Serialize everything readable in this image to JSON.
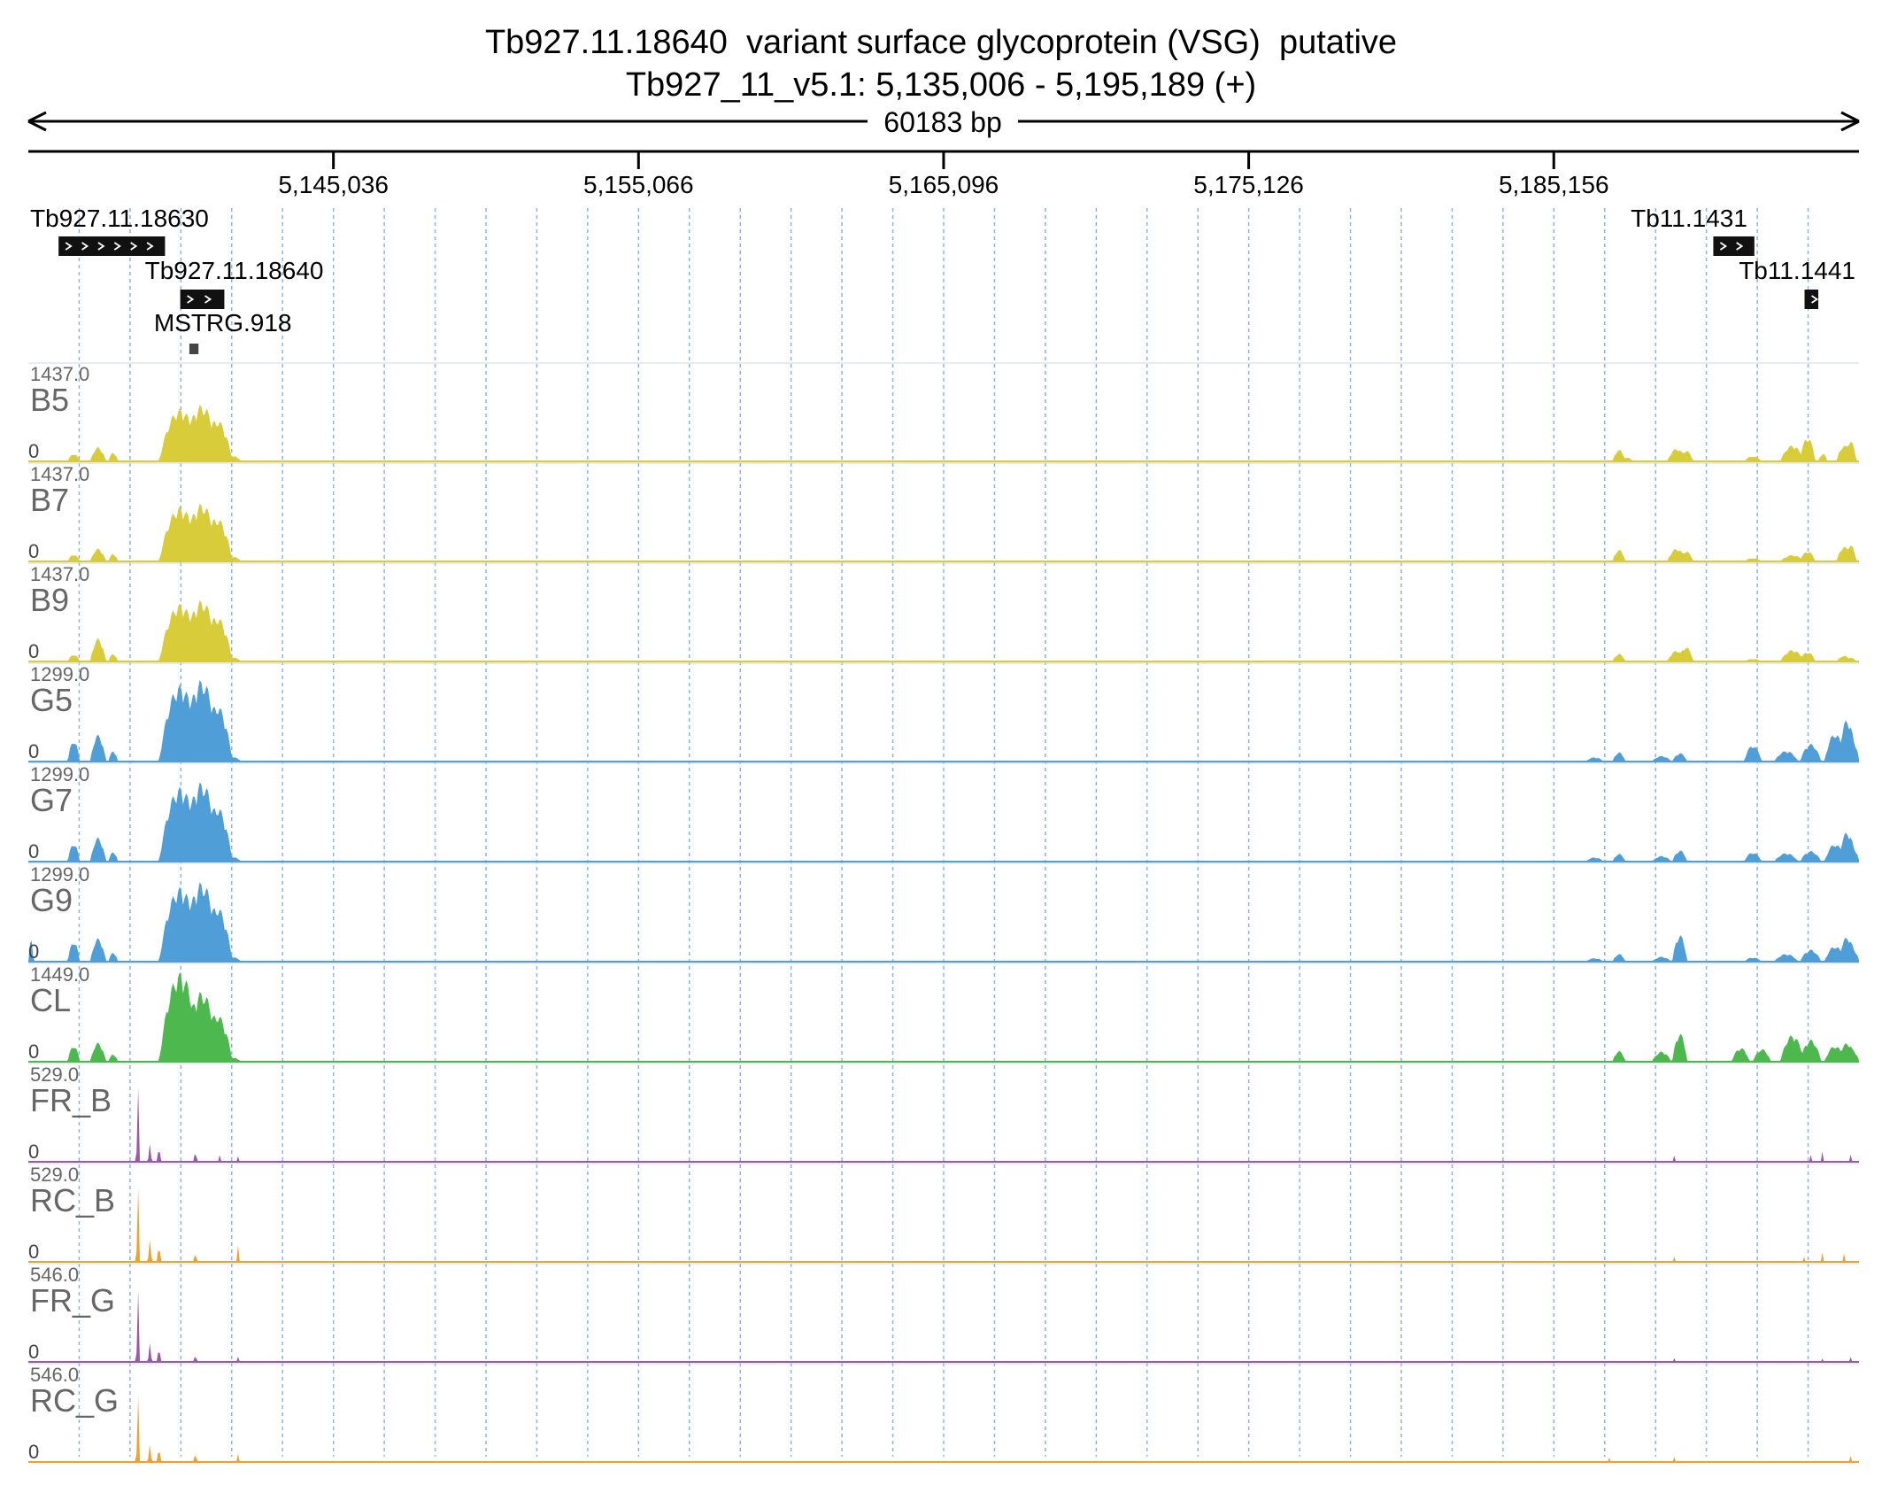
{
  "header": {
    "title": "Tb927.11.18640  variant surface glycoprotein (VSG)  putative",
    "region": "Tb927_11_v5.1: 5,135,006 - 5,195,189 (+)",
    "span_label": "60183 bp"
  },
  "colors": {
    "bloodstream": "#d9cc3a",
    "procyclic": "#4f9ed8",
    "cl": "#4db84d",
    "fr": "#9b5aa6",
    "rc": "#f0a030",
    "feature": "#111111",
    "gridline": "#8ab4e0"
  },
  "chart_data": {
    "type": "area",
    "title": "Tb927.11.18640  variant surface glycoprotein (VSG)  putative",
    "xrange": [
      5135006,
      5195189
    ],
    "x_ticks": [
      5145036,
      5155066,
      5165096,
      5175126,
      5185156
    ],
    "x_tick_labels": [
      "5,145,036",
      "5,155,066",
      "5,165,096",
      "5,175,126",
      "5,185,156"
    ],
    "features": [
      {
        "name": "Tb927.11.18630",
        "start": 5136000,
        "end": 5139500,
        "strand": "+",
        "row": 0
      },
      {
        "name": "Tb927.11.18640",
        "start": 5140000,
        "end": 5141450,
        "strand": "+",
        "row": 1
      },
      {
        "name": "MSTRG.918",
        "start": 5140300,
        "end": 5140600,
        "strand": "",
        "row": 2
      },
      {
        "name": "Tb11.1431",
        "start": 5190400,
        "end": 5191750,
        "strand": "+",
        "row": 0
      },
      {
        "name": "Tb11.1441",
        "start": 5193400,
        "end": 5193850,
        "strand": "+",
        "row": 1
      }
    ],
    "series": [
      {
        "name": "B5",
        "max_label": "1437.0",
        "min_label": "0",
        "ymax": 1437,
        "color_key": "bloodstream",
        "peaks": [
          [
            5136500,
            120,
            200
          ],
          [
            5137300,
            220,
            260
          ],
          [
            5137800,
            140,
            160
          ],
          [
            5140000,
            820,
            700
          ],
          [
            5140700,
            880,
            650
          ],
          [
            5141200,
            650,
            520
          ],
          [
            5141800,
            80,
            200
          ],
          [
            5187300,
            180,
            220
          ],
          [
            5187600,
            60,
            160
          ],
          [
            5189200,
            200,
            320
          ],
          [
            5189500,
            170,
            250
          ],
          [
            5191700,
            80,
            300
          ],
          [
            5193000,
            250,
            400
          ],
          [
            5193500,
            380,
            260
          ],
          [
            5194000,
            120,
            150
          ],
          [
            5194700,
            250,
            250
          ],
          [
            5194900,
            320,
            220
          ]
        ]
      },
      {
        "name": "B7",
        "max_label": "1437.0",
        "min_label": "0",
        "ymax": 1437,
        "color_key": "bloodstream",
        "peaks": [
          [
            5136500,
            110,
            200
          ],
          [
            5137300,
            200,
            260
          ],
          [
            5137800,
            120,
            160
          ],
          [
            5140000,
            850,
            700
          ],
          [
            5140700,
            900,
            650
          ],
          [
            5141200,
            680,
            520
          ],
          [
            5141800,
            70,
            200
          ],
          [
            5187300,
            180,
            220
          ],
          [
            5189200,
            200,
            320
          ],
          [
            5189500,
            160,
            250
          ],
          [
            5191700,
            50,
            300
          ],
          [
            5193000,
            100,
            400
          ],
          [
            5193500,
            160,
            260
          ],
          [
            5194700,
            230,
            250
          ],
          [
            5194900,
            260,
            220
          ]
        ]
      },
      {
        "name": "B9",
        "max_label": "1437.0",
        "min_label": "0",
        "ymax": 1437,
        "color_key": "bloodstream",
        "peaks": [
          [
            5136500,
            110,
            200
          ],
          [
            5137300,
            360,
            260
          ],
          [
            5137800,
            120,
            160
          ],
          [
            5140000,
            900,
            700
          ],
          [
            5140700,
            950,
            650
          ],
          [
            5141200,
            700,
            520
          ],
          [
            5141800,
            60,
            200
          ],
          [
            5187300,
            120,
            220
          ],
          [
            5189200,
            170,
            320
          ],
          [
            5189500,
            230,
            250
          ],
          [
            5191700,
            40,
            300
          ],
          [
            5193000,
            180,
            400
          ],
          [
            5193500,
            150,
            260
          ],
          [
            5194700,
            90,
            250
          ],
          [
            5194900,
            60,
            220
          ]
        ]
      },
      {
        "name": "G5",
        "max_label": "1299.0",
        "min_label": "0",
        "ymax": 1299,
        "color_key": "procyclic",
        "peaks": [
          [
            5136500,
            300,
            200
          ],
          [
            5137300,
            380,
            260
          ],
          [
            5137800,
            150,
            160
          ],
          [
            5140000,
            1080,
            700
          ],
          [
            5140700,
            1150,
            650
          ],
          [
            5141200,
            800,
            520
          ],
          [
            5141800,
            60,
            200
          ],
          [
            5186500,
            60,
            300
          ],
          [
            5187300,
            130,
            220
          ],
          [
            5188700,
            80,
            320
          ],
          [
            5189300,
            120,
            250
          ],
          [
            5191700,
            230,
            300
          ],
          [
            5192800,
            150,
            400
          ],
          [
            5193600,
            250,
            350
          ],
          [
            5194400,
            400,
            350
          ],
          [
            5194800,
            600,
            300
          ],
          [
            5195000,
            300,
            200
          ]
        ]
      },
      {
        "name": "G7",
        "max_label": "1299.0",
        "min_label": "0",
        "ymax": 1299,
        "color_key": "procyclic",
        "peaks": [
          [
            5136500,
            260,
            200
          ],
          [
            5137300,
            340,
            260
          ],
          [
            5137800,
            140,
            160
          ],
          [
            5140000,
            1050,
            700
          ],
          [
            5140700,
            1120,
            650
          ],
          [
            5141200,
            780,
            520
          ],
          [
            5141800,
            60,
            200
          ],
          [
            5186500,
            60,
            300
          ],
          [
            5187300,
            110,
            220
          ],
          [
            5188700,
            80,
            320
          ],
          [
            5189300,
            160,
            250
          ],
          [
            5191700,
            130,
            300
          ],
          [
            5192800,
            120,
            400
          ],
          [
            5193600,
            150,
            350
          ],
          [
            5194400,
            250,
            350
          ],
          [
            5194800,
            420,
            300
          ],
          [
            5195000,
            200,
            200
          ]
        ]
      },
      {
        "name": "G9",
        "max_label": "1299.0",
        "min_label": "0",
        "ymax": 1299,
        "color_key": "procyclic",
        "peaks": [
          [
            5135100,
            340,
            80
          ],
          [
            5136500,
            290,
            200
          ],
          [
            5137300,
            330,
            260
          ],
          [
            5137800,
            130,
            160
          ],
          [
            5140000,
            1050,
            700
          ],
          [
            5140700,
            1120,
            650
          ],
          [
            5141200,
            780,
            520
          ],
          [
            5141800,
            60,
            200
          ],
          [
            5186500,
            50,
            300
          ],
          [
            5187300,
            110,
            220
          ],
          [
            5188700,
            70,
            320
          ],
          [
            5189300,
            380,
            250
          ],
          [
            5191700,
            60,
            300
          ],
          [
            5192800,
            110,
            400
          ],
          [
            5193600,
            170,
            350
          ],
          [
            5194400,
            220,
            350
          ],
          [
            5194800,
            350,
            300
          ],
          [
            5195000,
            180,
            200
          ]
        ]
      },
      {
        "name": "CL",
        "max_label": "1449.0",
        "min_label": "0",
        "ymax": 1449,
        "color_key": "cl",
        "peaks": [
          [
            5136500,
            260,
            200
          ],
          [
            5137300,
            300,
            260
          ],
          [
            5137800,
            120,
            160
          ],
          [
            5140000,
            1400,
            700
          ],
          [
            5140700,
            1100,
            650
          ],
          [
            5141200,
            750,
            520
          ],
          [
            5141800,
            60,
            200
          ],
          [
            5187300,
            170,
            220
          ],
          [
            5188700,
            160,
            320
          ],
          [
            5189300,
            450,
            250
          ],
          [
            5191300,
            220,
            300
          ],
          [
            5192000,
            200,
            300
          ],
          [
            5193000,
            420,
            400
          ],
          [
            5193600,
            350,
            350
          ],
          [
            5194400,
            250,
            350
          ],
          [
            5194800,
            300,
            300
          ],
          [
            5195000,
            180,
            200
          ]
        ]
      },
      {
        "name": "FR_B",
        "max_label": "529.0",
        "min_label": "0",
        "ymax": 529,
        "color_key": "fr",
        "peaks": [
          [
            5138600,
            520,
            40
          ],
          [
            5139000,
            120,
            60
          ],
          [
            5139300,
            70,
            60
          ],
          [
            5140500,
            60,
            50
          ],
          [
            5141300,
            40,
            50
          ],
          [
            5141900,
            40,
            50
          ],
          [
            5189100,
            50,
            30
          ],
          [
            5192700,
            30,
            30
          ],
          [
            5193600,
            40,
            30
          ],
          [
            5194000,
            90,
            30
          ],
          [
            5194900,
            60,
            30
          ]
        ]
      },
      {
        "name": "RC_B",
        "max_label": "529.0",
        "min_label": "0",
        "ymax": 529,
        "color_key": "rc",
        "peaks": [
          [
            5138600,
            520,
            40
          ],
          [
            5139000,
            150,
            60
          ],
          [
            5139300,
            80,
            60
          ],
          [
            5140500,
            50,
            50
          ],
          [
            5141900,
            120,
            50
          ],
          [
            5189100,
            40,
            30
          ],
          [
            5193400,
            40,
            30
          ],
          [
            5194000,
            80,
            30
          ],
          [
            5194700,
            50,
            30
          ]
        ]
      },
      {
        "name": "FR_G",
        "max_label": "546.0",
        "min_label": "0",
        "ymax": 546,
        "color_key": "fr",
        "peaks": [
          [
            5138600,
            510,
            40
          ],
          [
            5139000,
            130,
            60
          ],
          [
            5139300,
            70,
            60
          ],
          [
            5140500,
            40,
            50
          ],
          [
            5141900,
            40,
            50
          ],
          [
            5189100,
            30,
            30
          ],
          [
            5194000,
            30,
            30
          ],
          [
            5194900,
            40,
            30
          ]
        ]
      },
      {
        "name": "RC_G",
        "max_label": "546.0",
        "min_label": "0",
        "ymax": 546,
        "color_key": "rc",
        "peaks": [
          [
            5138600,
            470,
            40
          ],
          [
            5139000,
            120,
            60
          ],
          [
            5139300,
            70,
            60
          ],
          [
            5140500,
            50,
            50
          ],
          [
            5141900,
            60,
            50
          ],
          [
            5187000,
            50,
            30
          ],
          [
            5189100,
            40,
            30
          ],
          [
            5194900,
            50,
            30
          ]
        ]
      }
    ]
  }
}
